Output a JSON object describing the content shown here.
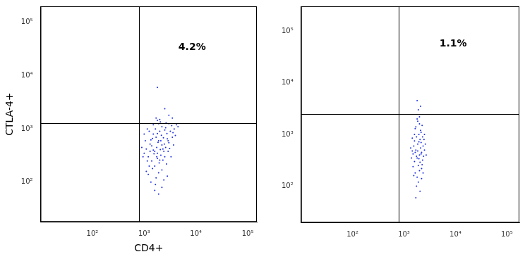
{
  "chart_data": [
    {
      "type": "scatter",
      "x_label": "CD4+",
      "y_label": "CTLA-4+",
      "log": true,
      "grid": false,
      "color": "#1e2fe6",
      "marker": "point",
      "xlim": [
        10,
        150000
      ],
      "ylim": [
        18,
        200000
      ],
      "xticks": [
        {
          "value": 100,
          "label": "10²"
        },
        {
          "value": 1000,
          "label": "10³"
        },
        {
          "value": 10000,
          "label": "10⁴"
        },
        {
          "value": 100000,
          "label": "10⁵"
        }
      ],
      "yticks": [
        {
          "value": 100,
          "label": "10²"
        },
        {
          "value": 1000,
          "label": "10³"
        },
        {
          "value": 10000,
          "label": "10⁴"
        },
        {
          "value": 100000,
          "label": "10⁵"
        }
      ],
      "gates": {
        "x": 800,
        "y": 1300
      },
      "annotation": "4.2%",
      "points": [
        [
          1500,
          400
        ],
        [
          1800,
          350
        ],
        [
          2200,
          500
        ],
        [
          1200,
          300
        ],
        [
          2600,
          450
        ],
        [
          1900,
          600
        ],
        [
          1400,
          250
        ],
        [
          2100,
          320
        ],
        [
          1700,
          700
        ],
        [
          2400,
          380
        ],
        [
          1100,
          420
        ],
        [
          3000,
          550
        ],
        [
          1600,
          200
        ],
        [
          2000,
          900
        ],
        [
          2300,
          260
        ],
        [
          1300,
          520
        ],
        [
          2800,
          650
        ],
        [
          1900,
          150
        ],
        [
          1500,
          800
        ],
        [
          2500,
          300
        ],
        [
          1000,
          350
        ],
        [
          3500,
          700
        ],
        [
          1750,
          450
        ],
        [
          2050,
          410
        ],
        [
          1350,
          620
        ],
        [
          2700,
          220
        ],
        [
          1650,
          1000
        ],
        [
          2200,
          1100
        ],
        [
          3200,
          900
        ],
        [
          1450,
          180
        ],
        [
          1200,
          140
        ],
        [
          2900,
          380
        ],
        [
          1800,
          280
        ],
        [
          2150,
          760
        ],
        [
          1250,
          900
        ],
        [
          3800,
          1000
        ],
        [
          1550,
          340
        ],
        [
          2450,
          520
        ],
        [
          1950,
          230
        ],
        [
          1050,
          600
        ],
        [
          4200,
          1200
        ],
        [
          1700,
          120
        ],
        [
          2600,
          1050
        ],
        [
          1400,
          480
        ],
        [
          3100,
          430
        ],
        [
          1850,
          560
        ],
        [
          2350,
          680
        ],
        [
          1600,
          380
        ],
        [
          2000,
          260
        ],
        [
          1150,
          250
        ],
        [
          2750,
          820
        ],
        [
          3400,
          1150
        ],
        [
          1500,
          1200
        ],
        [
          1900,
          1250
        ],
        [
          2200,
          170
        ],
        [
          1300,
          380
        ],
        [
          1650,
          90
        ],
        [
          2500,
          950
        ],
        [
          3000,
          1250
        ],
        [
          1800,
          820
        ],
        [
          900,
          450
        ],
        [
          1000,
          800
        ],
        [
          4500,
          1100
        ],
        [
          2100,
          600
        ],
        [
          1750,
          300
        ],
        [
          1450,
          660
        ],
        [
          2300,
          420
        ],
        [
          2900,
          600
        ],
        [
          3600,
          850
        ],
        [
          1250,
          200
        ],
        [
          2000,
          1500
        ],
        [
          3000,
          1800
        ],
        [
          2500,
          2400
        ],
        [
          1700,
          1600
        ],
        [
          1800,
          6000
        ],
        [
          1600,
          70
        ],
        [
          2200,
          80
        ],
        [
          1900,
          60
        ],
        [
          2400,
          110
        ],
        [
          1350,
          100
        ],
        [
          2800,
          130
        ],
        [
          1100,
          160
        ],
        [
          3300,
          300
        ],
        [
          3700,
          500
        ],
        [
          4000,
          750
        ],
        [
          950,
          300
        ],
        [
          1150,
          1000
        ],
        [
          2650,
          1300
        ],
        [
          2050,
          1350
        ],
        [
          1800,
          1450
        ],
        [
          3500,
          1600
        ]
      ]
    },
    {
      "type": "scatter",
      "log": true,
      "grid": false,
      "color": "#1e2fe6",
      "marker": "point",
      "xlim": [
        10,
        175000
      ],
      "ylim": [
        20,
        300000
      ],
      "xticks": [
        {
          "value": 100,
          "label": "10²"
        },
        {
          "value": 1000,
          "label": "10³"
        },
        {
          "value": 10000,
          "label": "10⁴"
        },
        {
          "value": 100000,
          "label": "10⁵"
        }
      ],
      "yticks": [
        {
          "value": 100,
          "label": "10²"
        },
        {
          "value": 1000,
          "label": "10³"
        },
        {
          "value": 10000,
          "label": "10⁴"
        },
        {
          "value": 100000,
          "label": "10⁵"
        }
      ],
      "gates": {
        "x": 800,
        "y": 2500
      },
      "annotation": "1.1%",
      "points": [
        [
          1800,
          350
        ],
        [
          2000,
          400
        ],
        [
          1600,
          300
        ],
        [
          2200,
          450
        ],
        [
          1900,
          250
        ],
        [
          2100,
          550
        ],
        [
          1700,
          500
        ],
        [
          2300,
          320
        ],
        [
          1500,
          420
        ],
        [
          2000,
          200
        ],
        [
          1850,
          650
        ],
        [
          2150,
          700
        ],
        [
          1650,
          180
        ],
        [
          2400,
          380
        ],
        [
          1400,
          350
        ],
        [
          2050,
          800
        ],
        [
          1750,
          900
        ],
        [
          2250,
          260
        ],
        [
          1950,
          1000
        ],
        [
          1550,
          600
        ],
        [
          2500,
          500
        ],
        [
          1800,
          150
        ],
        [
          2100,
          1200
        ],
        [
          1700,
          1400
        ],
        [
          2000,
          1600
        ],
        [
          1900,
          120
        ],
        [
          2300,
          900
        ],
        [
          1600,
          750
        ],
        [
          2200,
          220
        ],
        [
          1450,
          480
        ],
        [
          2600,
          650
        ],
        [
          1750,
          100
        ],
        [
          2050,
          80
        ],
        [
          1850,
          1800
        ],
        [
          2150,
          1100
        ],
        [
          1650,
          1300
        ],
        [
          2350,
          600
        ],
        [
          1950,
          340
        ],
        [
          1500,
          240
        ],
        [
          2450,
          800
        ],
        [
          2700,
          400
        ],
        [
          1350,
          550
        ],
        [
          1800,
          2000
        ],
        [
          2000,
          2200
        ],
        [
          1900,
          3000
        ],
        [
          2100,
          3500
        ],
        [
          1700,
          60
        ],
        [
          2200,
          140
        ],
        [
          1600,
          1000
        ],
        [
          2500,
          1000
        ],
        [
          1850,
          480
        ],
        [
          2050,
          290
        ],
        [
          1950,
          720
        ],
        [
          1750,
          380
        ],
        [
          2150,
          420
        ],
        [
          1550,
          160
        ],
        [
          2350,
          180
        ],
        [
          1450,
          850
        ],
        [
          2250,
          1500
        ],
        [
          1650,
          450
        ],
        [
          1800,
          4500
        ]
      ]
    }
  ]
}
